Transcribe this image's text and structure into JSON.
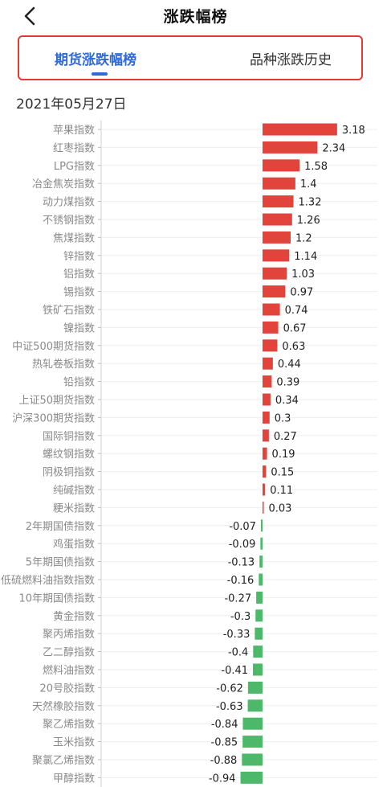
{
  "header": {
    "title": "涨跌幅榜"
  },
  "tabs": [
    {
      "label": "期货涨跌幅榜",
      "active": true
    },
    {
      "label": "品种涨跌历史",
      "active": false
    }
  ],
  "date": "2021年05月27日",
  "colors": {
    "up": "#e2443c",
    "down": "#4db86a",
    "accent": "#2e6bd8",
    "highlight_border": "#e53935"
  },
  "icons": {
    "back": "chevron-left-icon"
  },
  "chart_data": {
    "type": "bar",
    "orientation": "horizontal",
    "categories": [
      "苹果指数",
      "红枣指数",
      "LPG指数",
      "冶金焦炭指数",
      "动力煤指数",
      "不锈钢指数",
      "焦煤指数",
      "锌指数",
      "铝指数",
      "锡指数",
      "铁矿石指数",
      "镍指数",
      "中证500期货指数",
      "热轧卷板指数",
      "铅指数",
      "上证50期货指数",
      "沪深300期货指数",
      "国际铜指数",
      "螺纹钢指数",
      "阴极铜指数",
      "纯碱指数",
      "粳米指数",
      "2年期国债指数",
      "鸡蛋指数",
      "5年期国债指数",
      "低硫燃料油指数指数",
      "10年期国债指数",
      "黄金指数",
      "聚丙烯指数",
      "乙二醇指数",
      "燃料油指数",
      "20号胶指数",
      "天然橡胶指数",
      "聚乙烯指数",
      "玉米指数",
      "聚氯乙烯指数",
      "甲醇指数"
    ],
    "values": [
      3.18,
      2.34,
      1.58,
      1.4,
      1.32,
      1.26,
      1.2,
      1.14,
      1.03,
      0.97,
      0.74,
      0.67,
      0.63,
      0.44,
      0.39,
      0.34,
      0.3,
      0.27,
      0.19,
      0.15,
      0.11,
      0.03,
      -0.07,
      -0.09,
      -0.13,
      -0.16,
      -0.27,
      -0.3,
      -0.33,
      -0.4,
      -0.41,
      -0.62,
      -0.63,
      -0.84,
      -0.85,
      -0.88,
      -0.94
    ],
    "value_labels": [
      "3.18",
      "2.34",
      "1.58",
      "1.4",
      "1.32",
      "1.26",
      "1.2",
      "1.14",
      "1.03",
      "0.97",
      "0.74",
      "0.67",
      "0.63",
      "0.44",
      "0.39",
      "0.34",
      "0.3",
      "0.27",
      "0.19",
      "0.15",
      "0.11",
      "0.03",
      "-0.07",
      "-0.09",
      "-0.13",
      "-0.16",
      "-0.27",
      "-0.3",
      "-0.33",
      "-0.4",
      "-0.41",
      "-0.62",
      "-0.63",
      "-0.84",
      "-0.85",
      "-0.88",
      "-0.94"
    ],
    "xlim": [
      -1.3,
      3.6
    ],
    "grid": true
  }
}
